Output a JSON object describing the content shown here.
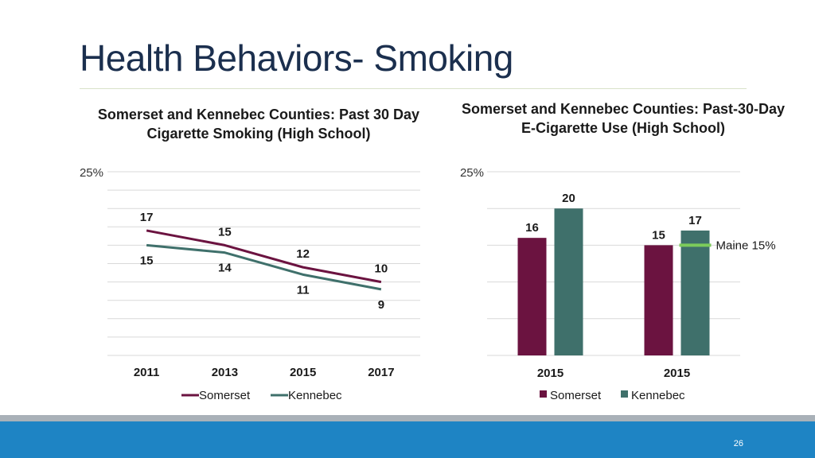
{
  "slide": {
    "title": "Health Behaviors- Smoking",
    "page_number": "26"
  },
  "colors": {
    "somerset": "#6b1340",
    "kennebec": "#3f706b",
    "maine_line": "#7ccb5b",
    "footer": "#1e84c4"
  },
  "chart_data": [
    {
      "type": "line",
      "title": "Somerset and Kennebec Counties: Past 30 Day Cigarette Smoking (High School)",
      "x": [
        "2011",
        "2013",
        "2015",
        "2017"
      ],
      "series": [
        {
          "name": "Somerset",
          "values": [
            17,
            15,
            12,
            10
          ]
        },
        {
          "name": "Kennebec",
          "values": [
            15,
            14,
            11,
            9
          ]
        }
      ],
      "y_tick_label": "25%",
      "ylim": [
        0,
        25
      ],
      "grid": true,
      "legend": "bottom"
    },
    {
      "type": "bar",
      "title": "Somerset and Kennebec Counties: Past-30-Day E-Cigarette Use (High School)",
      "categories": [
        "2015",
        "2015"
      ],
      "series": [
        {
          "name": "Somerset",
          "values": [
            16,
            15
          ]
        },
        {
          "name": "Kennebec",
          "values": [
            20,
            17
          ]
        }
      ],
      "reference_line": {
        "label": "Maine 15%",
        "value": 15
      },
      "y_tick_label": "25%",
      "ylim": [
        0,
        25
      ],
      "grid": true,
      "legend": "bottom"
    }
  ]
}
